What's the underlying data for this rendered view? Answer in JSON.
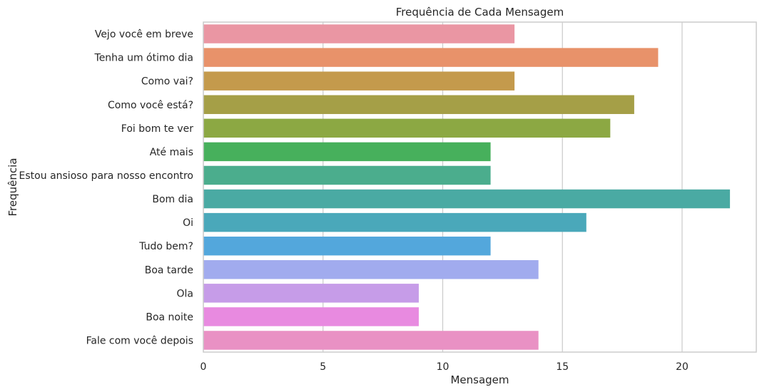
{
  "chart_data": {
    "type": "bar",
    "orientation": "horizontal",
    "title": "Frequência de Cada Mensagem",
    "xlabel": "Mensagem",
    "ylabel": "Frequência",
    "xlim": [
      0,
      23.1
    ],
    "xticks": [
      0,
      5,
      10,
      15,
      20
    ],
    "grid": true,
    "categories": [
      "Vejo você em breve",
      "Tenha um ótimo dia",
      "Como vai?",
      "Como você está?",
      "Foi bom te ver",
      "Até mais",
      "Estou ansioso para nosso encontro",
      "Bom dia",
      "Oi",
      "Tudo bem?",
      "Boa tarde",
      "Ola",
      "Boa noite",
      "Fale com você depois"
    ],
    "values": [
      13,
      19,
      13,
      18,
      17,
      12,
      12,
      22,
      16,
      12,
      14,
      9,
      9,
      14
    ],
    "colors": [
      "#ea96a3",
      "#e8926a",
      "#c49a4c",
      "#a59f47",
      "#8ca843",
      "#47b05c",
      "#4bad8d",
      "#4aaaa3",
      "#4aa8ba",
      "#53a7dc",
      "#a1abee",
      "#c69ce8",
      "#e88ae0",
      "#e991c4"
    ]
  }
}
